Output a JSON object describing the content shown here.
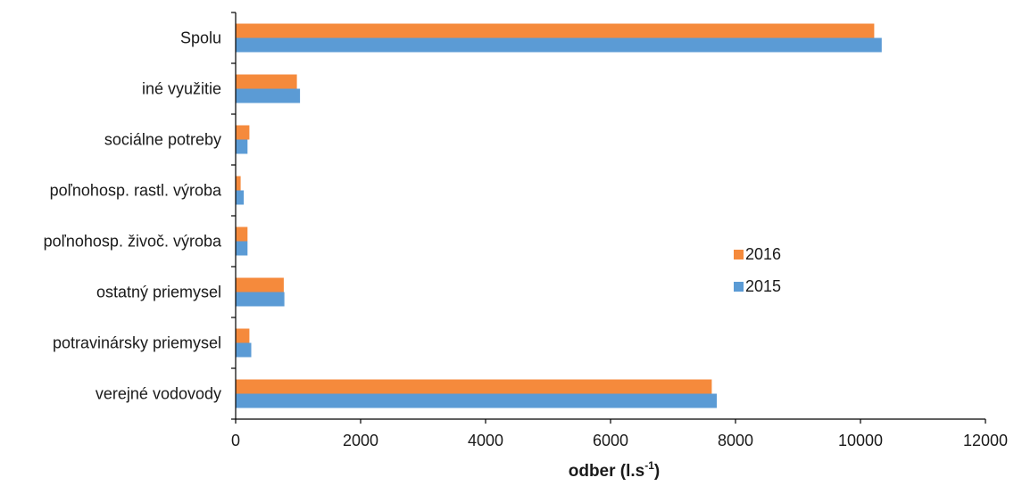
{
  "chart_data": {
    "type": "bar",
    "orientation": "horizontal",
    "categories": [
      "Spolu",
      "iné využitie",
      "sociálne potreby",
      "poľnohosp. rastl. výroba",
      "poľnohosp. živoč. výroba",
      "ostatný priemysel",
      "potravinársky priemysel",
      "verejné vodovody"
    ],
    "series": [
      {
        "name": "2016",
        "color": "#F58A3C",
        "values": [
          10220,
          980,
          220,
          80,
          190,
          770,
          220,
          7620
        ]
      },
      {
        "name": "2015",
        "color": "#5B9BD5",
        "values": [
          10340,
          1030,
          190,
          130,
          190,
          780,
          250,
          7700
        ]
      }
    ],
    "xlim": [
      0,
      12000
    ],
    "xticks": [
      "0",
      "2000",
      "4000",
      "6000",
      "8000",
      "10000",
      "12000"
    ],
    "xlabel": {
      "main": "odber (l.s",
      "sup": "-1",
      "end": ")"
    },
    "grid": false,
    "legend": {
      "placement": "right",
      "entries": [
        "2016",
        "2015"
      ]
    }
  }
}
